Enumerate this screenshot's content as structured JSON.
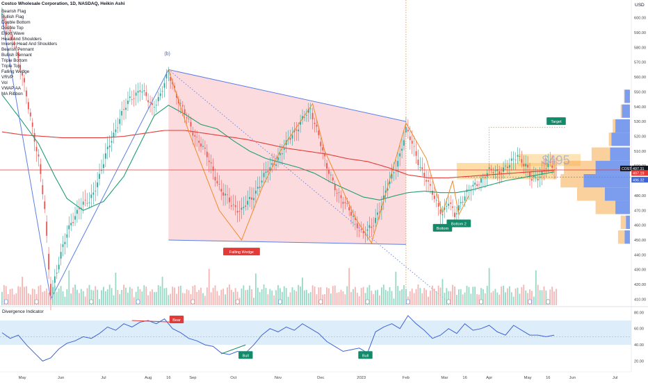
{
  "header": {
    "symbol_title": "Costco Wholesale Corporation, 1D, NASDAQ, Heikin Ashi",
    "currency": "USD"
  },
  "indicator_list": [
    "Bearish Flag",
    "Bullish Flag",
    "Double Bottom",
    "Double Top",
    "Elliott Wave",
    "Head And Shoulders",
    "Inverse Head And Shoulders",
    "Bearish Pennant",
    "Bullish Pennant",
    "Triple Bottom",
    "Triple Top",
    "Falling Wedge",
    "VRVP",
    "Vol",
    "VWAP AA",
    "MA Ribbon"
  ],
  "colors": {
    "up": "#26a69a",
    "down": "#ef5350",
    "wedge_fill": "#fbd5d9",
    "wedge_line": "#5b7fe6",
    "pattern_line": "#f08a24",
    "ma_green": "#1f9e74",
    "ma_red": "#e53935",
    "osc_line": "#3d63d6",
    "osc_band": "#ddeefa",
    "target": "#138a6a"
  },
  "chart_data": [
    {
      "type": "candlestick",
      "title": "Costco Wholesale Corporation, 1D, NASDAQ, Heikin Ashi",
      "y_axis": {
        "ylim": [
          406,
          612
        ],
        "ticks": [
          410,
          420,
          430,
          440,
          450,
          460,
          470,
          480,
          490,
          500,
          510,
          520,
          530,
          540,
          550,
          560,
          570,
          580,
          590,
          600
        ],
        "tick_labels": [
          "410.00",
          "420.00",
          "430.00",
          "440.00",
          "450.00",
          "460.00",
          "470.00",
          "480.00",
          "490.00",
          "500.00",
          "510.00",
          "520.00",
          "530.00",
          "540.00",
          "550.00",
          "560.00",
          "570.00",
          "580.00",
          "590.00",
          "600.00"
        ],
        "grid": false
      },
      "x_axis": {
        "ticks": [
          {
            "label": "May",
            "day": 0
          },
          {
            "label": "Jun",
            "day": 19
          },
          {
            "label": "Jul",
            "day": 40
          },
          {
            "label": "Aug",
            "day": 62
          },
          {
            "label": "16",
            "day": 72
          },
          {
            "label": "Sep",
            "day": 84
          },
          {
            "label": "Oct",
            "day": 104
          },
          {
            "label": "Nov",
            "day": 126
          },
          {
            "label": "Dec",
            "day": 147
          },
          {
            "label": "2023",
            "day": 167
          },
          {
            "label": "Feb",
            "day": 189
          },
          {
            "label": "Mar",
            "day": 208
          },
          {
            "label": "16",
            "day": 218
          },
          {
            "label": "Apr",
            "day": 230
          },
          {
            "label": "May",
            "day": 249
          },
          {
            "label": "16",
            "day": 259
          },
          {
            "label": "Jun",
            "day": 271
          },
          {
            "label": "Jul",
            "day": 292
          }
        ],
        "xlim": [
          -11,
          300
        ]
      },
      "price_anchors": [
        [
          -10,
          600
        ],
        [
          -4,
          585
        ],
        [
          0,
          560
        ],
        [
          4,
          533
        ],
        [
          8,
          505
        ],
        [
          11,
          470
        ],
        [
          13,
          430
        ],
        [
          14,
          412
        ],
        [
          16,
          425
        ],
        [
          20,
          445
        ],
        [
          24,
          462
        ],
        [
          28,
          472
        ],
        [
          33,
          476
        ],
        [
          38,
          493
        ],
        [
          43,
          515
        ],
        [
          48,
          532
        ],
        [
          53,
          545
        ],
        [
          58,
          552
        ],
        [
          64,
          540
        ],
        [
          68,
          548
        ],
        [
          72,
          563
        ],
        [
          76,
          548
        ],
        [
          80,
          535
        ],
        [
          84,
          523
        ],
        [
          88,
          515
        ],
        [
          93,
          500
        ],
        [
          98,
          483
        ],
        [
          103,
          474
        ],
        [
          108,
          470
        ],
        [
          113,
          478
        ],
        [
          118,
          491
        ],
        [
          123,
          500
        ],
        [
          128,
          510
        ],
        [
          133,
          521
        ],
        [
          138,
          532
        ],
        [
          142,
          537
        ],
        [
          146,
          522
        ],
        [
          150,
          498
        ],
        [
          154,
          486
        ],
        [
          159,
          474
        ],
        [
          164,
          463
        ],
        [
          168,
          454
        ],
        [
          172,
          458
        ],
        [
          177,
          475
        ],
        [
          182,
          492
        ],
        [
          186,
          508
        ],
        [
          189,
          524
        ],
        [
          192,
          515
        ],
        [
          196,
          500
        ],
        [
          200,
          487
        ],
        [
          204,
          476
        ],
        [
          207,
          468
        ],
        [
          210,
          475
        ],
        [
          213,
          467
        ],
        [
          216,
          476
        ],
        [
          220,
          483
        ],
        [
          225,
          490
        ],
        [
          230,
          496
        ],
        [
          235,
          497
        ],
        [
          240,
          500
        ],
        [
          244,
          508
        ],
        [
          248,
          500
        ],
        [
          251,
          490
        ],
        [
          255,
          494
        ],
        [
          258,
          500
        ],
        [
          261,
          499
        ],
        [
          263,
          497
        ]
      ],
      "moving_averages": [
        {
          "name": "MA Ribbon (short)",
          "color": "#1f9e74",
          "points": [
            [
              -10,
              548
            ],
            [
              0,
              530
            ],
            [
              8,
              515
            ],
            [
              16,
              493
            ],
            [
              22,
              478
            ],
            [
              30,
              470
            ],
            [
              40,
              476
            ],
            [
              50,
              493
            ],
            [
              58,
              515
            ],
            [
              65,
              534
            ],
            [
              72,
              541
            ],
            [
              80,
              535
            ],
            [
              88,
              528
            ],
            [
              96,
              525
            ],
            [
              104,
              517
            ],
            [
              112,
              510
            ],
            [
              120,
              505
            ],
            [
              128,
              502
            ],
            [
              136,
              499
            ],
            [
              144,
              495
            ],
            [
              152,
              489
            ],
            [
              160,
              484
            ],
            [
              168,
              479
            ],
            [
              176,
              477
            ],
            [
              184,
              480
            ],
            [
              190,
              482
            ],
            [
              198,
              483
            ],
            [
              206,
              482
            ],
            [
              214,
              482
            ],
            [
              222,
              484
            ],
            [
              230,
              487
            ],
            [
              238,
              490
            ],
            [
              246,
              492
            ],
            [
              254,
              494
            ],
            [
              262,
              496
            ]
          ]
        },
        {
          "name": "MA Ribbon (long)",
          "color": "#e53935",
          "points": [
            [
              -10,
              523
            ],
            [
              0,
              521
            ],
            [
              10,
              520
            ],
            [
              20,
              519
            ],
            [
              30,
              519
            ],
            [
              40,
              519
            ],
            [
              50,
              520
            ],
            [
              60,
              522
            ],
            [
              70,
              524
            ],
            [
              80,
              524
            ],
            [
              90,
              522
            ],
            [
              100,
              520
            ],
            [
              110,
              518
            ],
            [
              120,
              515
            ],
            [
              130,
              512
            ],
            [
              140,
              510
            ],
            [
              150,
              508
            ],
            [
              160,
              505
            ],
            [
              170,
              503
            ],
            [
              180,
              499
            ],
            [
              190,
              494
            ],
            [
              200,
              492
            ],
            [
              210,
              492
            ],
            [
              220,
              493
            ],
            [
              230,
              494
            ],
            [
              240,
              495
            ],
            [
              250,
              496
            ],
            [
              262,
              497
            ]
          ]
        }
      ],
      "falling_wedge": {
        "label": "Falling Wedge",
        "upper": [
          [
            72,
            565
          ],
          [
            189,
            530
          ]
        ],
        "lower": [
          [
            72,
            450
          ],
          [
            189,
            447
          ]
        ]
      },
      "elliott_wave": {
        "label": "(b)",
        "points": [
          [
            -10,
            600
          ],
          [
            14,
            410
          ],
          [
            72,
            565
          ]
        ],
        "projection": [
          [
            72,
            565
          ],
          [
            210,
            408
          ]
        ]
      },
      "pattern_zigzag": [
        [
          72,
          565
        ],
        [
          82,
          523
        ],
        [
          97,
          470
        ],
        [
          108,
          450
        ],
        [
          118,
          485
        ],
        [
          127,
          510
        ],
        [
          143,
          542
        ],
        [
          149,
          510
        ],
        [
          155,
          492
        ],
        [
          164,
          465
        ],
        [
          172,
          448
        ],
        [
          189,
          529
        ],
        [
          199,
          505
        ],
        [
          207,
          468
        ],
        [
          212,
          490
        ],
        [
          215,
          467
        ],
        [
          220,
          480
        ]
      ],
      "double_bottom": {
        "labels": [
          "Bottom",
          "Bottom 2"
        ],
        "target_label": "Target",
        "target_price": 526,
        "target_from_day": 230
      },
      "price_levels": {
        "cost": {
          "label": "COST",
          "value": "497.31",
          "price": 497.31
        },
        "secondary": {
          "value": "497.19",
          "price": 496.9
        },
        "level": {
          "value": "496.32",
          "price": 492.5
        },
        "watermark": "$495"
      },
      "volume_profile": {
        "bins": [
          {
            "price": 452,
            "up": 8,
            "down": 10
          },
          {
            "price": 462,
            "up": 6,
            "down": 8
          },
          {
            "price": 472,
            "up": 22,
            "down": 30
          },
          {
            "price": 481,
            "up": 38,
            "down": 42
          },
          {
            "price": 490,
            "up": 70,
            "down": 35
          },
          {
            "price": 499,
            "up": 52,
            "down": 48
          },
          {
            "price": 508,
            "up": 30,
            "down": 28
          },
          {
            "price": 518,
            "up": 28,
            "down": 4
          },
          {
            "price": 527,
            "up": 22,
            "down": 4
          },
          {
            "price": 537,
            "up": 12,
            "down": 2
          },
          {
            "price": 547,
            "up": 8,
            "down": 1
          }
        ]
      }
    },
    {
      "type": "line",
      "title": "Divergence Indicator",
      "y_axis": {
        "ylim": [
          17,
          82
        ],
        "ticks": [
          20,
          40,
          60,
          80
        ],
        "tick_labels": [
          "20.00",
          "40.00",
          "60.00",
          "80.00"
        ],
        "band": [
          40,
          70
        ],
        "midline": 50
      },
      "x": [
        -10,
        -6,
        -2,
        2,
        6,
        10,
        14,
        18,
        22,
        26,
        30,
        34,
        38,
        42,
        46,
        50,
        54,
        58,
        62,
        66,
        70,
        74,
        78,
        82,
        86,
        90,
        94,
        98,
        102,
        106,
        110,
        114,
        118,
        122,
        126,
        130,
        134,
        138,
        142,
        146,
        150,
        154,
        158,
        162,
        166,
        170,
        174,
        178,
        182,
        186,
        190,
        194,
        198,
        202,
        206,
        210,
        214,
        218,
        222,
        226,
        230,
        234,
        238,
        242,
        246,
        250,
        254,
        258,
        262
      ],
      "y": [
        55,
        48,
        52,
        40,
        30,
        20,
        24,
        35,
        42,
        45,
        50,
        48,
        54,
        62,
        58,
        66,
        62,
        68,
        70,
        66,
        72,
        60,
        55,
        48,
        45,
        40,
        38,
        30,
        28,
        32,
        30,
        40,
        52,
        60,
        56,
        62,
        58,
        66,
        60,
        54,
        44,
        38,
        32,
        34,
        36,
        30,
        56,
        62,
        66,
        60,
        76,
        66,
        58,
        48,
        52,
        60,
        54,
        66,
        58,
        60,
        64,
        56,
        52,
        64,
        58,
        52,
        52,
        50,
        52
      ],
      "labels": {
        "bear": "Bear",
        "bull": "Bull"
      },
      "bear_divergence": [
        [
          54,
          70
        ],
        [
          74,
          68
        ]
      ],
      "bull_divergence": [
        [
          98,
          29
        ],
        [
          110,
          40
        ]
      ],
      "bull_divergence_2": [
        [
          166,
          34
        ],
        [
          170,
          34
        ]
      ]
    }
  ]
}
